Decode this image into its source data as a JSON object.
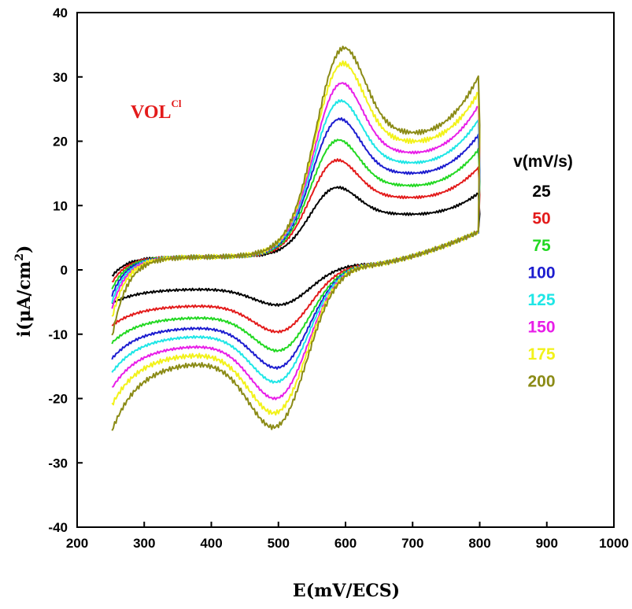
{
  "chart_data": {
    "type": "line",
    "title": "",
    "xlabel": "E(mV/ECS)",
    "ylabel_main": "i(μA/cm",
    "ylabel_sup": "2",
    "ylabel_close": ")",
    "xlim": [
      200,
      1000
    ],
    "ylim": [
      -40,
      40
    ],
    "x_ticks": [
      200,
      300,
      400,
      500,
      600,
      700,
      800,
      900,
      1000
    ],
    "y_ticks": [
      -40,
      -30,
      -20,
      -10,
      0,
      10,
      20,
      30,
      40
    ],
    "grid": false,
    "annotation": {
      "text": "VOL",
      "sup": "Cl",
      "color": "#e31b1b"
    },
    "legend": {
      "title": "v(mV/s)",
      "placement": "right"
    },
    "series": [
      {
        "name": "25",
        "color": "#000000",
        "anodic_peak": {
          "x": 580,
          "y": 13.5
        },
        "cathodic_peak": {
          "x": 510,
          "y": -5.8
        },
        "end_current": 14.5,
        "start_current": -2.5
      },
      {
        "name": "50",
        "color": "#e31b1b",
        "anodic_peak": {
          "x": 580,
          "y": 18.0
        },
        "cathodic_peak": {
          "x": 510,
          "y": -10.2
        },
        "end_current": 19.5,
        "start_current": -3.5
      },
      {
        "name": "75",
        "color": "#22d822",
        "anodic_peak": {
          "x": 582,
          "y": 21.2
        },
        "cathodic_peak": {
          "x": 510,
          "y": -13.3
        },
        "end_current": 23.0,
        "start_current": -4.5
      },
      {
        "name": "100",
        "color": "#1c1ccf",
        "anodic_peak": {
          "x": 584,
          "y": 24.5
        },
        "cathodic_peak": {
          "x": 508,
          "y": -16.0
        },
        "end_current": 26.0,
        "start_current": -5.5
      },
      {
        "name": "125",
        "color": "#1ee6e6",
        "anodic_peak": {
          "x": 586,
          "y": 27.3
        },
        "cathodic_peak": {
          "x": 506,
          "y": -18.2
        },
        "end_current": 29.0,
        "start_current": -6.5
      },
      {
        "name": "150",
        "color": "#e81ee8",
        "anodic_peak": {
          "x": 588,
          "y": 30.0
        },
        "cathodic_peak": {
          "x": 505,
          "y": -20.8
        },
        "end_current": 31.8,
        "start_current": -7.5
      },
      {
        "name": "175",
        "color": "#f2f21a",
        "anodic_peak": {
          "x": 590,
          "y": 33.0
        },
        "cathodic_peak": {
          "x": 503,
          "y": -23.0
        },
        "end_current": 34.5,
        "start_current": -9.0
      },
      {
        "name": "200",
        "color": "#8b8b16",
        "anodic_peak": {
          "x": 592,
          "y": 35.3
        },
        "cathodic_peak": {
          "x": 502,
          "y": -25.2
        },
        "end_current": 37.5,
        "start_current": -12.0
      }
    ]
  }
}
